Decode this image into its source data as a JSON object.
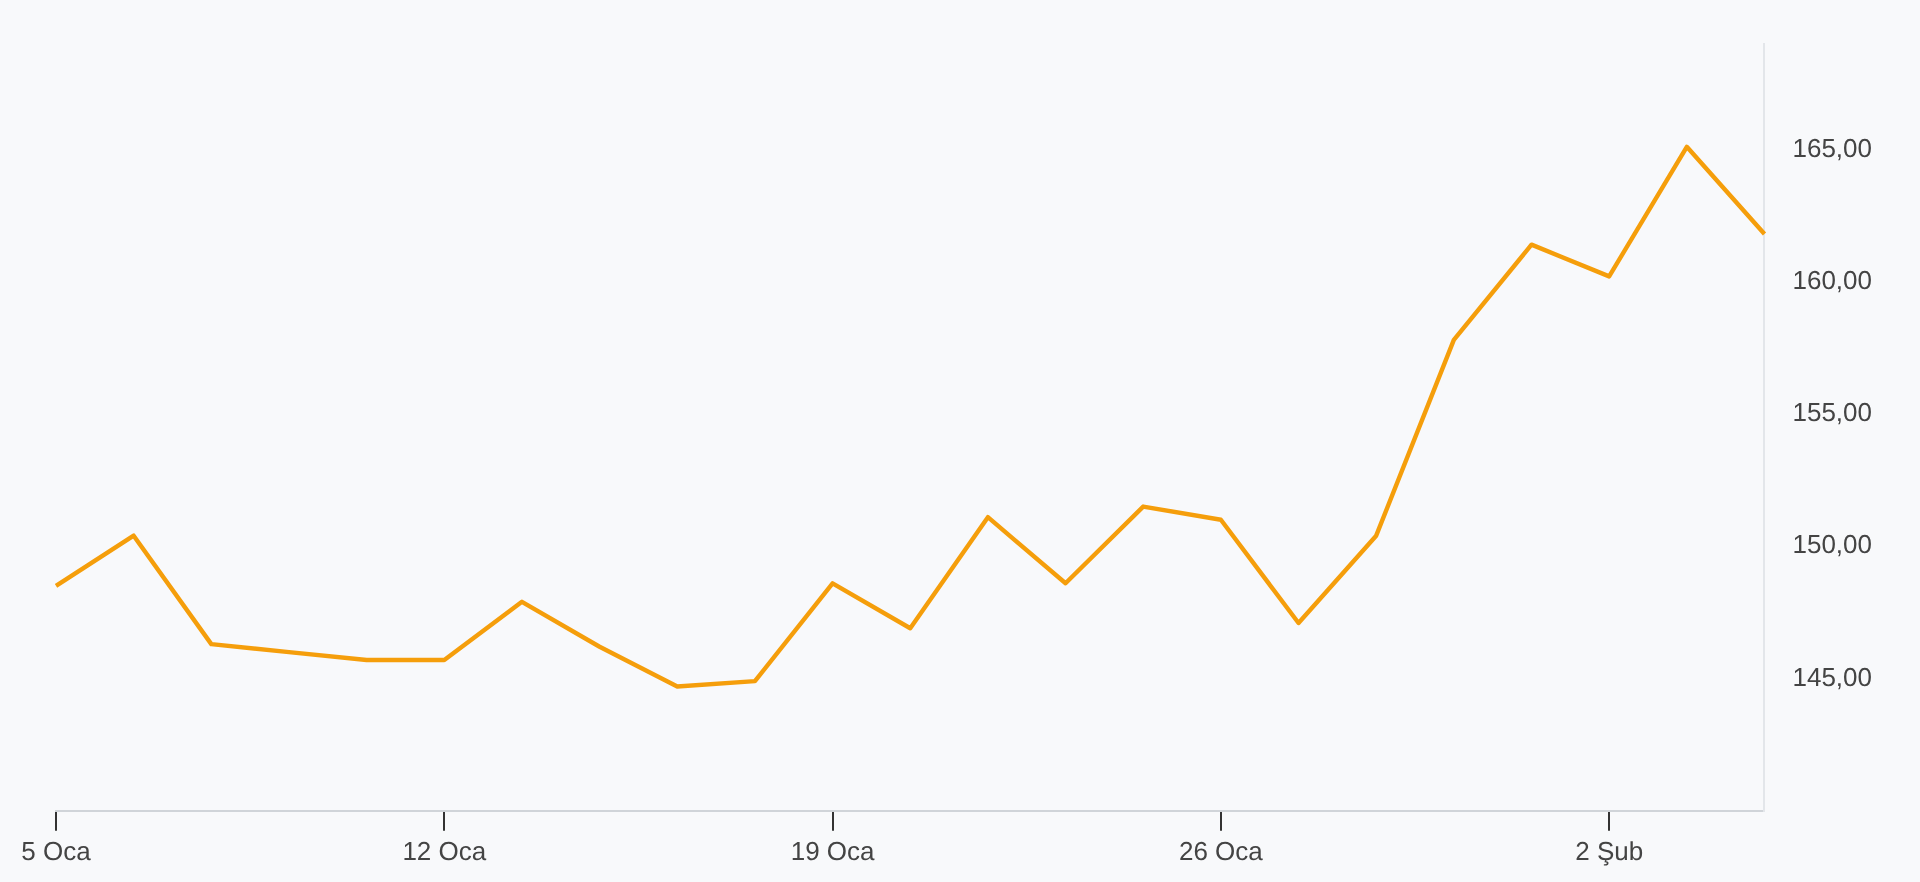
{
  "chart_data": {
    "type": "line",
    "categories": [
      "5 Oca",
      null,
      null,
      null,
      null,
      "12 Oca",
      null,
      null,
      null,
      null,
      "19 Oca",
      null,
      null,
      null,
      null,
      "26 Oca",
      null,
      null,
      null,
      null,
      "2 Şub",
      null,
      null
    ],
    "series": [
      {
        "color": "#f59e0b",
        "values": [
          148.5,
          150.4,
          146.3,
          146.0,
          145.7,
          145.7,
          147.9,
          146.2,
          144.7,
          144.9,
          148.6,
          146.9,
          151.1,
          148.6,
          151.5,
          151.0,
          147.1,
          150.4,
          157.8,
          161.4,
          160.2,
          165.1,
          161.8
        ]
      }
    ],
    "ylim": [
      140,
      169
    ],
    "yticks": [
      {
        "value": 145,
        "label": "145,00"
      },
      {
        "value": 150,
        "label": "150,00"
      },
      {
        "value": 155,
        "label": "155,00"
      },
      {
        "value": 160,
        "label": "160,00"
      },
      {
        "value": 165,
        "label": "165,00"
      }
    ],
    "grid": false,
    "legend": false,
    "marker": "none",
    "line_style": "solid"
  }
}
